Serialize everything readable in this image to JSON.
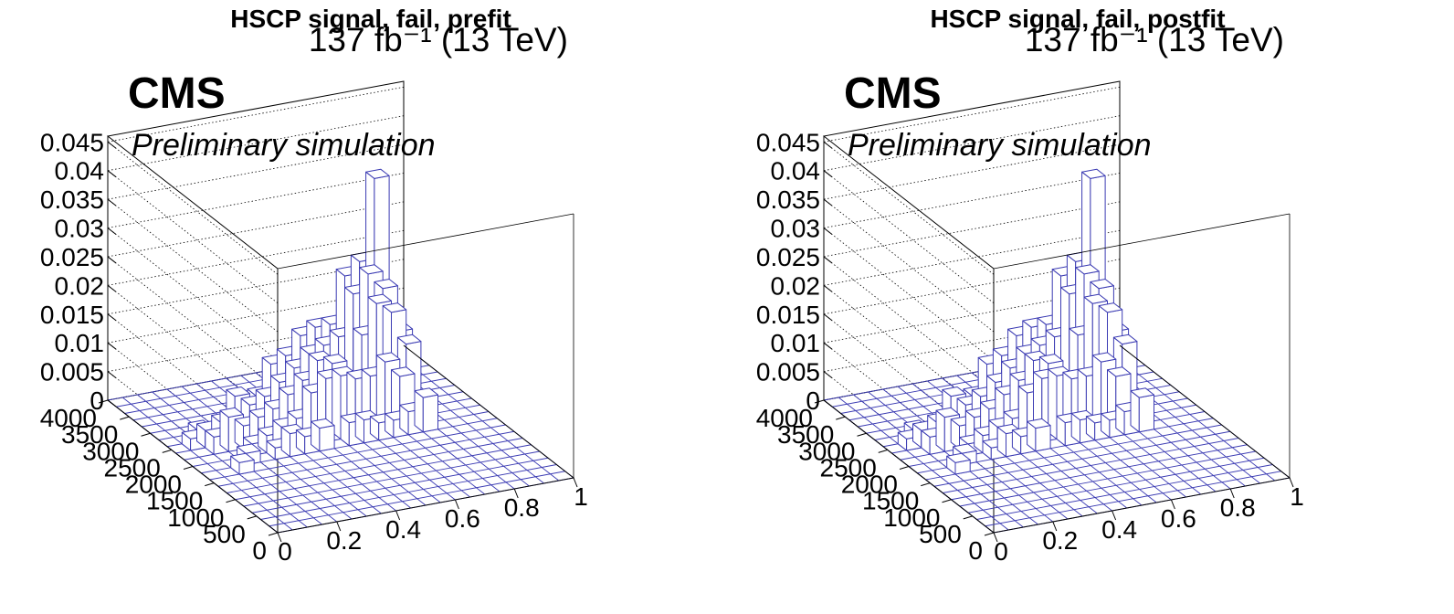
{
  "chart_data": [
    {
      "type": "lego3d",
      "title": "HSCP signal, fail, prefit",
      "luminosity_label": "137 fb⁻¹ (13 TeV)",
      "experiment_label": "CMS",
      "status_label": "Preliminary simulation",
      "x_ticks": [
        "0",
        "0.2",
        "0.4",
        "0.6",
        "0.8",
        "1"
      ],
      "y_ticks": [
        "0",
        "500",
        "1000",
        "1500",
        "2000",
        "2500",
        "3000",
        "3500",
        "4000"
      ],
      "z_ticks": [
        "0",
        "0.005",
        "0.01",
        "0.015",
        "0.02",
        "0.025",
        "0.03",
        "0.035",
        "0.04",
        "0.045"
      ],
      "xlim": [
        0,
        1
      ],
      "ylim": [
        0,
        4000
      ],
      "zlim": [
        0,
        0.046
      ],
      "nbins_x": 20,
      "nbins_y": 20,
      "bar_color": "#3b3bb3",
      "bins": [
        {
          "ix": 12,
          "iy": 11,
          "z": 0.016
        },
        {
          "ix": 13,
          "iy": 11,
          "z": 0.021
        },
        {
          "ix": 14,
          "iy": 11,
          "z": 0.019
        },
        {
          "ix": 15,
          "iy": 11,
          "z": 0.013
        },
        {
          "ix": 12,
          "iy": 12,
          "z": 0.022
        },
        {
          "ix": 13,
          "iy": 12,
          "z": 0.025
        },
        {
          "ix": 14,
          "iy": 12,
          "z": 0.022
        },
        {
          "ix": 15,
          "iy": 12,
          "z": 0.014
        },
        {
          "ix": 11,
          "iy": 13,
          "z": 0.016
        },
        {
          "ix": 12,
          "iy": 13,
          "z": 0.024
        },
        {
          "ix": 13,
          "iy": 13,
          "z": 0.026
        },
        {
          "ix": 14,
          "iy": 13,
          "z": 0.04
        },
        {
          "ix": 15,
          "iy": 13,
          "z": 0.015
        },
        {
          "ix": 9,
          "iy": 13,
          "z": 0.015
        },
        {
          "ix": 10,
          "iy": 13,
          "z": 0.016
        },
        {
          "ix": 11,
          "iy": 12,
          "z": 0.015
        },
        {
          "ix": 7,
          "iy": 13,
          "z": 0.011
        },
        {
          "ix": 8,
          "iy": 13,
          "z": 0.012
        },
        {
          "ix": 8,
          "iy": 12,
          "z": 0.011
        },
        {
          "ix": 9,
          "iy": 12,
          "z": 0.013
        },
        {
          "ix": 10,
          "iy": 12,
          "z": 0.014
        },
        {
          "ix": 6,
          "iy": 13,
          "z": 0.006
        },
        {
          "ix": 5,
          "iy": 12,
          "z": 0.006
        },
        {
          "ix": 4,
          "iy": 12,
          "z": 0.008
        },
        {
          "ix": 6,
          "iy": 12,
          "z": 0.007
        },
        {
          "ix": 7,
          "iy": 12,
          "z": 0.009
        },
        {
          "ix": 13,
          "iy": 10,
          "z": 0.012
        },
        {
          "ix": 14,
          "iy": 10,
          "z": 0.009
        },
        {
          "ix": 12,
          "iy": 10,
          "z": 0.01
        },
        {
          "ix": 11,
          "iy": 10,
          "z": 0.01
        },
        {
          "ix": 10,
          "iy": 10,
          "z": 0.011
        },
        {
          "ix": 9,
          "iy": 11,
          "z": 0.013
        },
        {
          "ix": 10,
          "iy": 11,
          "z": 0.012
        },
        {
          "ix": 8,
          "iy": 11,
          "z": 0.01
        },
        {
          "ix": 7,
          "iy": 11,
          "z": 0.008
        },
        {
          "ix": 6,
          "iy": 11,
          "z": 0.006
        },
        {
          "ix": 5,
          "iy": 11,
          "z": 0.005
        },
        {
          "ix": 4,
          "iy": 11,
          "z": 0.004
        },
        {
          "ix": 3,
          "iy": 11,
          "z": 0.006
        },
        {
          "ix": 2,
          "iy": 11,
          "z": 0.003
        },
        {
          "ix": 3,
          "iy": 12,
          "z": 0.004
        },
        {
          "ix": 2,
          "iy": 12,
          "z": 0.003
        },
        {
          "ix": 1,
          "iy": 12,
          "z": 0.002
        },
        {
          "ix": 2,
          "iy": 13,
          "z": 0.002
        },
        {
          "ix": 15,
          "iy": 9,
          "z": 0.006
        },
        {
          "ix": 14,
          "iy": 9,
          "z": 0.004
        },
        {
          "ix": 13,
          "iy": 9,
          "z": 0.003
        },
        {
          "ix": 12,
          "iy": 9,
          "z": 0.003
        },
        {
          "ix": 11,
          "iy": 9,
          "z": 0.004
        },
        {
          "ix": 10,
          "iy": 9,
          "z": 0.004
        },
        {
          "ix": 9,
          "iy": 10,
          "z": 0.011
        },
        {
          "ix": 8,
          "iy": 10,
          "z": 0.009
        },
        {
          "ix": 7,
          "iy": 10,
          "z": 0.005
        },
        {
          "ix": 6,
          "iy": 10,
          "z": 0.004
        },
        {
          "ix": 5,
          "iy": 10,
          "z": 0.003
        },
        {
          "ix": 4,
          "iy": 10,
          "z": 0.002
        },
        {
          "ix": 8,
          "iy": 9,
          "z": 0.004
        },
        {
          "ix": 7,
          "iy": 9,
          "z": 0.003
        },
        {
          "ix": 6,
          "iy": 9,
          "z": 0.004
        },
        {
          "ix": 5,
          "iy": 9,
          "z": 0.002
        },
        {
          "ix": 3,
          "iy": 9,
          "z": 0.002
        },
        {
          "ix": 2,
          "iy": 8,
          "z": 0.002
        }
      ]
    },
    {
      "type": "lego3d",
      "title": "HSCP signal, fail, postfit",
      "luminosity_label": "137 fb⁻¹ (13 TeV)",
      "experiment_label": "CMS",
      "status_label": "Preliminary simulation",
      "x_ticks": [
        "0",
        "0.2",
        "0.4",
        "0.6",
        "0.8",
        "1"
      ],
      "y_ticks": [
        "0",
        "500",
        "1000",
        "1500",
        "2000",
        "2500",
        "3000",
        "3500",
        "4000"
      ],
      "z_ticks": [
        "0",
        "0.005",
        "0.01",
        "0.015",
        "0.02",
        "0.025",
        "0.03",
        "0.035",
        "0.04",
        "0.045"
      ],
      "xlim": [
        0,
        1
      ],
      "ylim": [
        0,
        4000
      ],
      "zlim": [
        0,
        0.046
      ],
      "nbins_x": 20,
      "nbins_y": 20,
      "bar_color": "#3b3bb3",
      "bins": [
        {
          "ix": 12,
          "iy": 11,
          "z": 0.016
        },
        {
          "ix": 13,
          "iy": 11,
          "z": 0.021
        },
        {
          "ix": 14,
          "iy": 11,
          "z": 0.019
        },
        {
          "ix": 15,
          "iy": 11,
          "z": 0.013
        },
        {
          "ix": 12,
          "iy": 12,
          "z": 0.022
        },
        {
          "ix": 13,
          "iy": 12,
          "z": 0.025
        },
        {
          "ix": 14,
          "iy": 12,
          "z": 0.022
        },
        {
          "ix": 15,
          "iy": 12,
          "z": 0.014
        },
        {
          "ix": 11,
          "iy": 13,
          "z": 0.016
        },
        {
          "ix": 12,
          "iy": 13,
          "z": 0.024
        },
        {
          "ix": 13,
          "iy": 13,
          "z": 0.026
        },
        {
          "ix": 14,
          "iy": 13,
          "z": 0.04
        },
        {
          "ix": 15,
          "iy": 13,
          "z": 0.015
        },
        {
          "ix": 9,
          "iy": 13,
          "z": 0.015
        },
        {
          "ix": 10,
          "iy": 13,
          "z": 0.016
        },
        {
          "ix": 11,
          "iy": 12,
          "z": 0.015
        },
        {
          "ix": 7,
          "iy": 13,
          "z": 0.011
        },
        {
          "ix": 8,
          "iy": 13,
          "z": 0.012
        },
        {
          "ix": 8,
          "iy": 12,
          "z": 0.011
        },
        {
          "ix": 9,
          "iy": 12,
          "z": 0.013
        },
        {
          "ix": 10,
          "iy": 12,
          "z": 0.014
        },
        {
          "ix": 6,
          "iy": 13,
          "z": 0.006
        },
        {
          "ix": 5,
          "iy": 12,
          "z": 0.006
        },
        {
          "ix": 4,
          "iy": 12,
          "z": 0.008
        },
        {
          "ix": 6,
          "iy": 12,
          "z": 0.007
        },
        {
          "ix": 7,
          "iy": 12,
          "z": 0.009
        },
        {
          "ix": 13,
          "iy": 10,
          "z": 0.012
        },
        {
          "ix": 14,
          "iy": 10,
          "z": 0.009
        },
        {
          "ix": 12,
          "iy": 10,
          "z": 0.01
        },
        {
          "ix": 11,
          "iy": 10,
          "z": 0.01
        },
        {
          "ix": 10,
          "iy": 10,
          "z": 0.011
        },
        {
          "ix": 9,
          "iy": 11,
          "z": 0.013
        },
        {
          "ix": 10,
          "iy": 11,
          "z": 0.012
        },
        {
          "ix": 8,
          "iy": 11,
          "z": 0.01
        },
        {
          "ix": 7,
          "iy": 11,
          "z": 0.008
        },
        {
          "ix": 6,
          "iy": 11,
          "z": 0.006
        },
        {
          "ix": 5,
          "iy": 11,
          "z": 0.005
        },
        {
          "ix": 4,
          "iy": 11,
          "z": 0.004
        },
        {
          "ix": 3,
          "iy": 11,
          "z": 0.006
        },
        {
          "ix": 2,
          "iy": 11,
          "z": 0.003
        },
        {
          "ix": 3,
          "iy": 12,
          "z": 0.004
        },
        {
          "ix": 2,
          "iy": 12,
          "z": 0.003
        },
        {
          "ix": 1,
          "iy": 12,
          "z": 0.002
        },
        {
          "ix": 2,
          "iy": 13,
          "z": 0.002
        },
        {
          "ix": 15,
          "iy": 9,
          "z": 0.006
        },
        {
          "ix": 14,
          "iy": 9,
          "z": 0.004
        },
        {
          "ix": 13,
          "iy": 9,
          "z": 0.003
        },
        {
          "ix": 12,
          "iy": 9,
          "z": 0.003
        },
        {
          "ix": 11,
          "iy": 9,
          "z": 0.004
        },
        {
          "ix": 10,
          "iy": 9,
          "z": 0.004
        },
        {
          "ix": 9,
          "iy": 10,
          "z": 0.011
        },
        {
          "ix": 8,
          "iy": 10,
          "z": 0.009
        },
        {
          "ix": 7,
          "iy": 10,
          "z": 0.005
        },
        {
          "ix": 6,
          "iy": 10,
          "z": 0.004
        },
        {
          "ix": 5,
          "iy": 10,
          "z": 0.003
        },
        {
          "ix": 4,
          "iy": 10,
          "z": 0.002
        },
        {
          "ix": 8,
          "iy": 9,
          "z": 0.004
        },
        {
          "ix": 7,
          "iy": 9,
          "z": 0.003
        },
        {
          "ix": 6,
          "iy": 9,
          "z": 0.004
        },
        {
          "ix": 5,
          "iy": 9,
          "z": 0.002
        },
        {
          "ix": 3,
          "iy": 9,
          "z": 0.002
        },
        {
          "ix": 2,
          "iy": 8,
          "z": 0.002
        }
      ]
    }
  ]
}
